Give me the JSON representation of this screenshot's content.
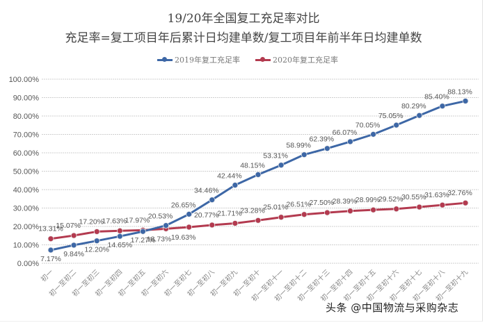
{
  "header": {
    "title": "19/20年全国复工充足率对比",
    "subtitle": "充足率=复工项目年后累计日均建单数/复工项目年前半年日均建单数"
  },
  "legend": [
    {
      "label": "2019年复工充足率",
      "color": "#3d67a6"
    },
    {
      "label": "2020年复工充足率",
      "color": "#b33a4f"
    }
  ],
  "watermark": "头条 @中国物流与采购杂志",
  "chart_data": {
    "type": "line",
    "title": "19/20年全国复工充足率对比",
    "subtitle": "充足率=复工项目年后累计日均建单数/复工项目年前半年日均建单数",
    "xlabel": "",
    "ylabel": "",
    "ylim": [
      0,
      100
    ],
    "yticks": [
      "0.00%",
      "10.00%",
      "20.00%",
      "30.00%",
      "40.00%",
      "50.00%",
      "60.00%",
      "70.00%",
      "80.00%",
      "90.00%",
      "100.00%"
    ],
    "grid": true,
    "legend_position": "top",
    "categories": [
      "初一",
      "初一至初二",
      "初一至初三",
      "初一至初四",
      "初一至初五",
      "初一至初六",
      "初一至初七",
      "初一至初八",
      "初一至初九",
      "初一至初十",
      "初一至初十一",
      "初一至初十二",
      "初一至初十三",
      "初一至初十四",
      "初一至初十五",
      "初一至初十六",
      "初一至初十七",
      "初一至初十八",
      "初一至初十九"
    ],
    "series": [
      {
        "name": "2019年复工充足率",
        "color": "#3d67a6",
        "values": [
          7.17,
          9.84,
          12.2,
          14.65,
          17.27,
          20.53,
          26.65,
          34.46,
          42.44,
          48.15,
          53.31,
          58.99,
          62.39,
          66.07,
          70.05,
          75.05,
          80.29,
          85.4,
          88.13
        ],
        "labels": [
          "7.17%",
          "9.84%",
          "12.20%",
          "14.65%",
          "17.27%",
          "20.53%",
          "26.65%",
          "34.46%",
          "42.44%",
          "48.15%",
          "53.31%",
          "58.99%",
          "62.39%",
          "66.07%",
          "70.05%",
          "75.05%",
          "80.29%",
          "85.40%",
          "88.13%"
        ]
      },
      {
        "name": "2020年复工充足率",
        "color": "#b33a4f",
        "values": [
          13.31,
          15.07,
          17.2,
          17.63,
          17.97,
          18.73,
          19.63,
          20.77,
          21.71,
          23.28,
          25.01,
          26.51,
          27.5,
          28.39,
          28.99,
          29.52,
          30.55,
          31.63,
          32.76
        ],
        "labels": [
          "13.31%",
          "15.07%",
          "17.20%",
          "17.63%",
          "17.97%",
          "18.73%",
          "19.63%",
          "20.77%",
          "21.71%",
          "23.28%",
          "25.01%",
          "26.51%",
          "27.50%",
          "28.39%",
          "28.99%",
          "29.52%",
          "30.55%",
          "31.63%",
          "32.76%"
        ]
      }
    ]
  }
}
